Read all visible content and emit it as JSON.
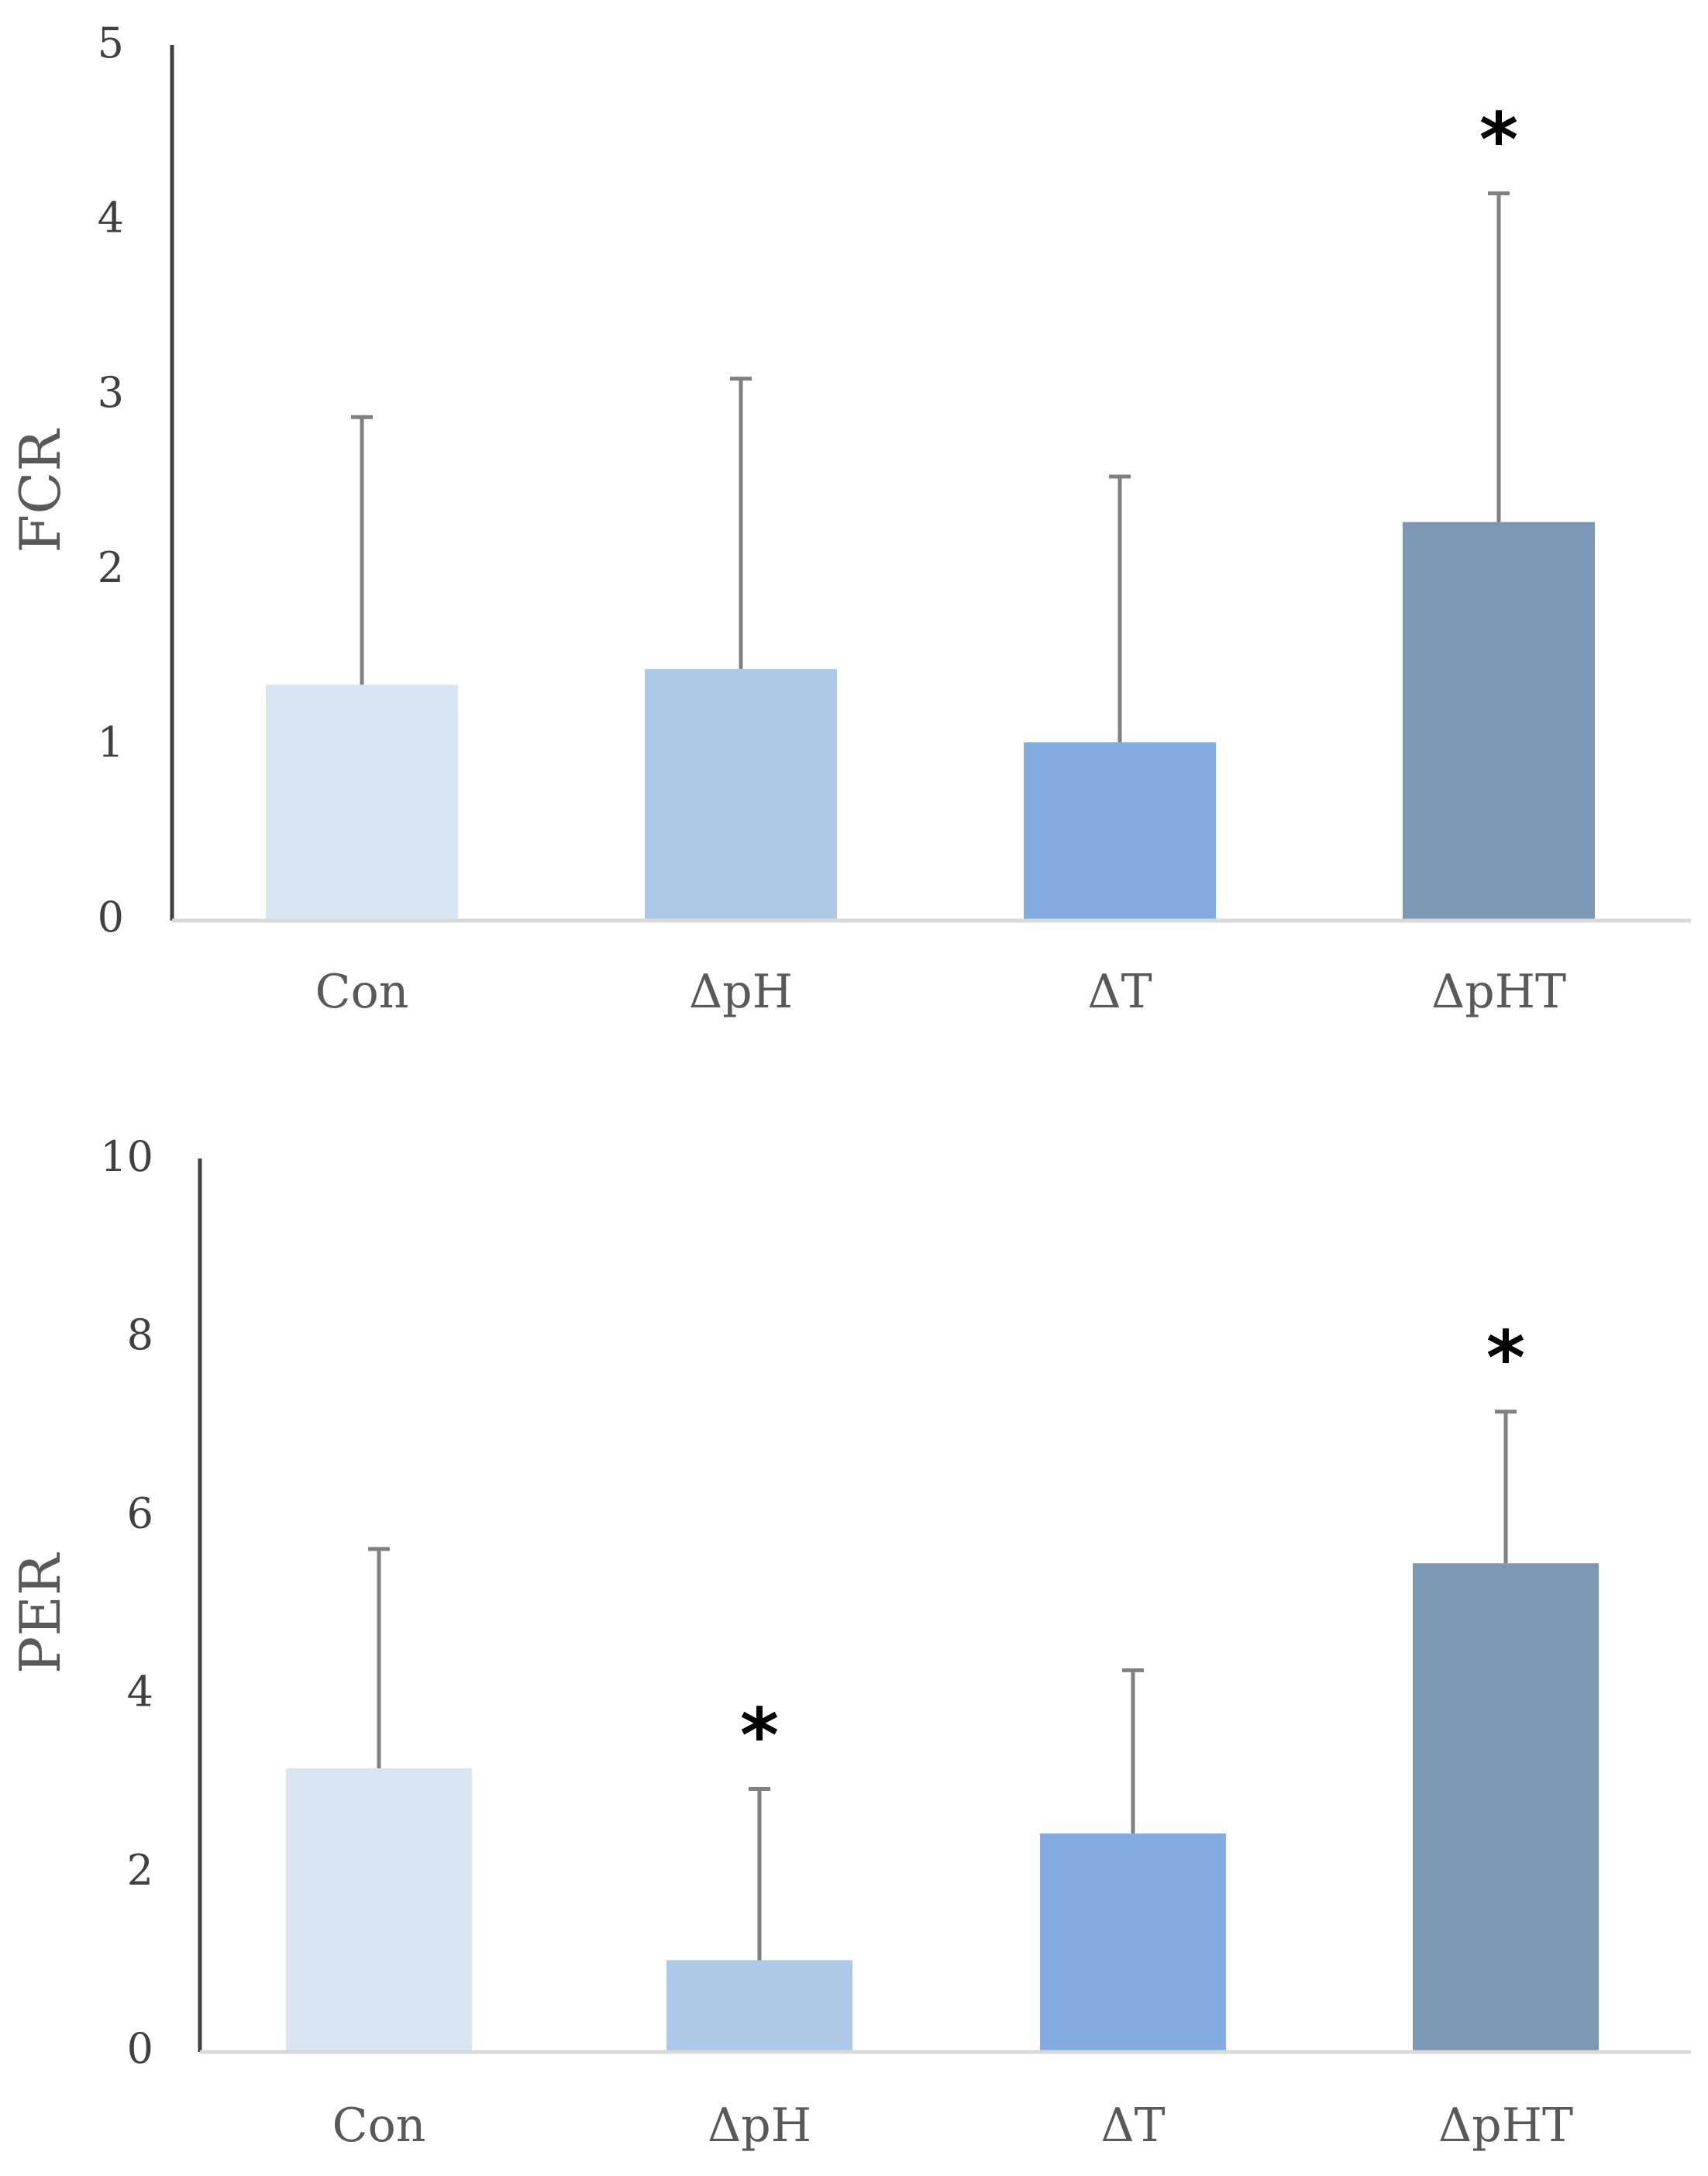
{
  "chart_data": [
    {
      "type": "bar",
      "title": "",
      "xlabel": "",
      "ylabel": "FCR",
      "ylim": [
        0,
        5
      ],
      "yticks": [
        0,
        1,
        2,
        3,
        4,
        5
      ],
      "categories": [
        "Con",
        "ΔpH",
        "ΔT",
        "ΔpHT"
      ],
      "values": [
        1.35,
        1.44,
        1.02,
        2.28
      ],
      "error_upper": [
        2.88,
        3.1,
        2.54,
        4.16
      ],
      "significance": [
        "",
        "",
        "",
        "*"
      ],
      "colors": [
        "#dae5f4",
        "#afc9e9",
        "#83ace0",
        "#7b98b4"
      ]
    },
    {
      "type": "bar",
      "title": "",
      "xlabel": "",
      "ylabel": "PER",
      "ylim": [
        0,
        10
      ],
      "yticks": [
        0,
        2,
        4,
        6,
        8,
        10
      ],
      "categories": [
        "Con",
        "ΔpH",
        "ΔT",
        "ΔpHT"
      ],
      "values": [
        3.18,
        1.03,
        2.45,
        5.48
      ],
      "error_upper": [
        5.64,
        2.95,
        4.28,
        7.18
      ],
      "significance": [
        "",
        "*",
        "",
        "*"
      ],
      "colors": [
        "#dae5f4",
        "#afc9e9",
        "#83ace0",
        "#7b98b4"
      ]
    }
  ]
}
